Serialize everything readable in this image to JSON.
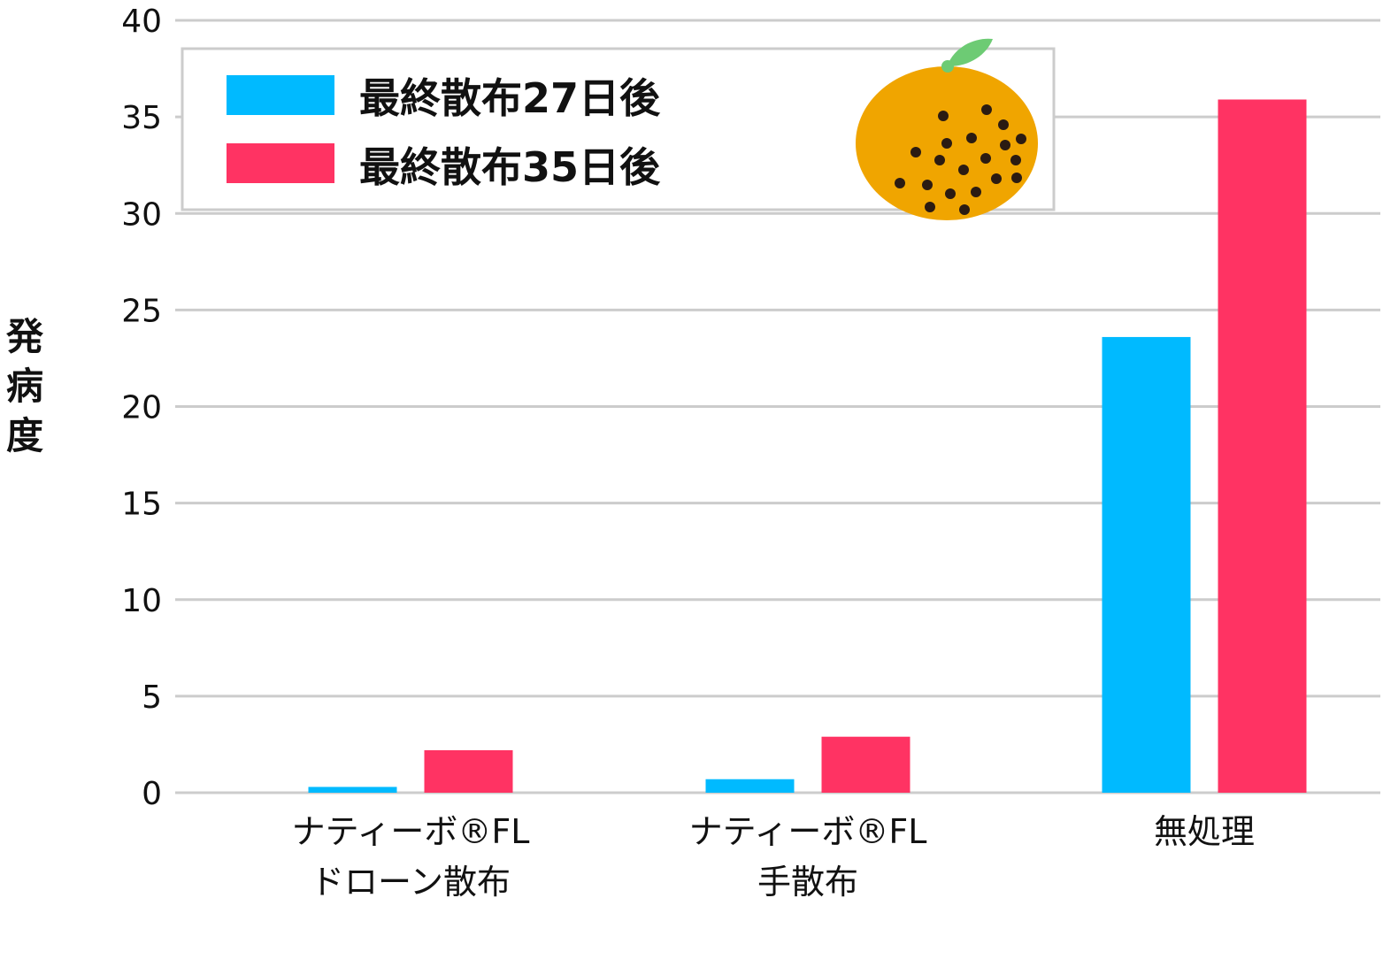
{
  "chart_data": {
    "type": "bar",
    "ylabel": "発病度",
    "ylim": [
      0,
      40
    ],
    "yticks": [
      0,
      5,
      10,
      15,
      20,
      25,
      30,
      35,
      40
    ],
    "grid": true,
    "legend_position": "top-left",
    "categories": [
      [
        "ナティーボ®FL",
        "ドローン散布"
      ],
      [
        "ナティーボ®FL",
        "手散布"
      ],
      [
        "無処理"
      ]
    ],
    "series": [
      {
        "name": "最終散布27日後",
        "color": "#00BAFF",
        "values": [
          0.3,
          0.7,
          23.6
        ]
      },
      {
        "name": "最終散布35日後",
        "color": "#FF3363",
        "values": [
          2.2,
          2.9,
          35.9
        ]
      }
    ]
  },
  "decoration": {
    "icon": "mandarin-orange-icon",
    "fruit_color": "#F0A500",
    "leaf_color": "#6DCB74",
    "spot_color": "#2B1B12"
  }
}
